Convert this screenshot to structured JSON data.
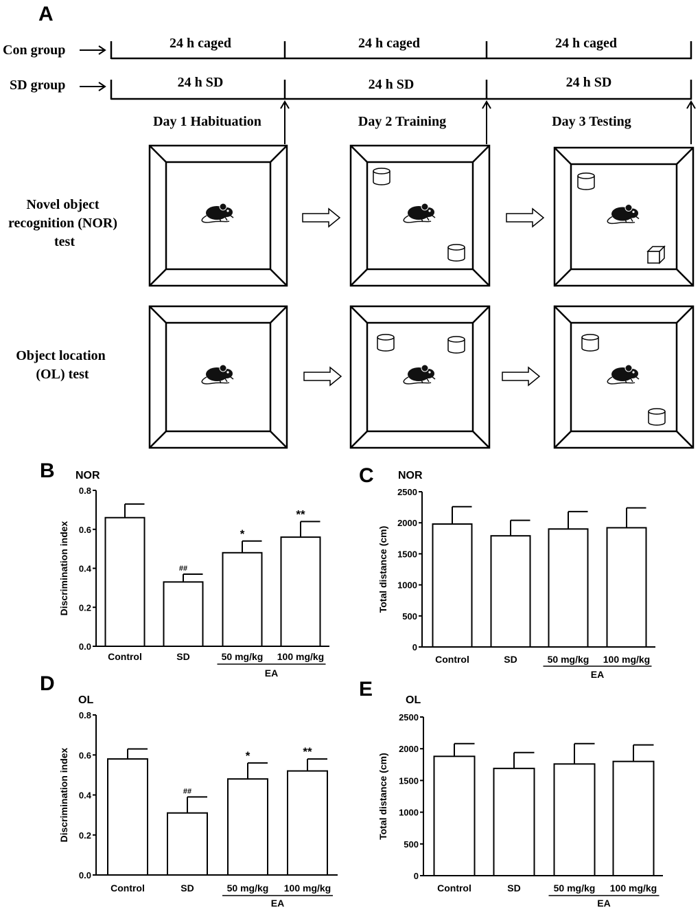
{
  "panel_a": {
    "letter": "A",
    "con_group_label": "Con group",
    "sd_group_label": "SD group",
    "con_segments": [
      "24 h caged",
      "24 h caged",
      "24 h caged"
    ],
    "sd_segments": [
      "24 h SD",
      "24 h SD",
      "24 h SD"
    ],
    "days": [
      "Day 1 Habituation",
      "Day 2 Training",
      "Day 3 Testing"
    ],
    "nor_label": [
      "Novel object",
      "recognition (NOR)",
      "test"
    ],
    "ol_label": [
      "Object location",
      "(OL) test"
    ],
    "nor_objects": [
      [],
      [
        "cylinder",
        "cylinder"
      ],
      [
        "cylinder",
        "cube"
      ]
    ],
    "ol_objects": [
      [],
      [
        "cylinder",
        "cylinder"
      ],
      [
        "cylinder",
        "cylinder"
      ]
    ],
    "icons": [
      "mouse-icon",
      "right-arrow-icon",
      "cylinder-icon",
      "cube-icon",
      "up-arrow-icon"
    ]
  },
  "chart_data": [
    {
      "panel": "B",
      "type": "bar",
      "title": "NOR",
      "ylabel": "Discrimination index",
      "ylim": [
        0,
        0.8
      ],
      "yticks": [
        "0.0",
        "0.2",
        "0.4",
        "0.6",
        "0.8"
      ],
      "categories": [
        "Control",
        "SD",
        "50 mg/kg",
        "100 mg/kg"
      ],
      "group_label": "EA",
      "values": [
        0.66,
        0.33,
        0.48,
        0.56
      ],
      "errors": [
        0.07,
        0.04,
        0.06,
        0.08
      ],
      "significance": [
        "",
        "##",
        "*",
        "**"
      ]
    },
    {
      "panel": "C",
      "type": "bar",
      "title": "NOR",
      "ylabel": "Total distance (cm)",
      "ylim": [
        0,
        2500
      ],
      "yticks": [
        "0",
        "500",
        "1000",
        "1500",
        "2000",
        "2500"
      ],
      "categories": [
        "Control",
        "SD",
        "50 mg/kg",
        "100 mg/kg"
      ],
      "group_label": "EA",
      "values": [
        1980,
        1790,
        1900,
        1920
      ],
      "errors": [
        280,
        250,
        280,
        320
      ],
      "significance": [
        "",
        "",
        "",
        ""
      ]
    },
    {
      "panel": "D",
      "type": "bar",
      "title": "OL",
      "ylabel": "Discrimination index",
      "ylim": [
        0,
        0.8
      ],
      "yticks": [
        "0.0",
        "0.2",
        "0.4",
        "0.6",
        "0.8"
      ],
      "categories": [
        "Control",
        "SD",
        "50 mg/kg",
        "100 mg/kg"
      ],
      "group_label": "EA",
      "values": [
        0.58,
        0.31,
        0.48,
        0.52
      ],
      "errors": [
        0.05,
        0.08,
        0.08,
        0.06
      ],
      "significance": [
        "",
        "##",
        "*",
        "**"
      ]
    },
    {
      "panel": "E",
      "type": "bar",
      "title": "OL",
      "ylabel": "Total distance (cm)",
      "ylim": [
        0,
        2500
      ],
      "yticks": [
        "0",
        "500",
        "1000",
        "1500",
        "2000",
        "2500"
      ],
      "categories": [
        "Control",
        "SD",
        "50 mg/kg",
        "100 mg/kg"
      ],
      "group_label": "EA",
      "values": [
        1880,
        1690,
        1760,
        1800
      ],
      "errors": [
        200,
        250,
        320,
        260
      ],
      "significance": [
        "",
        "",
        "",
        ""
      ]
    }
  ]
}
